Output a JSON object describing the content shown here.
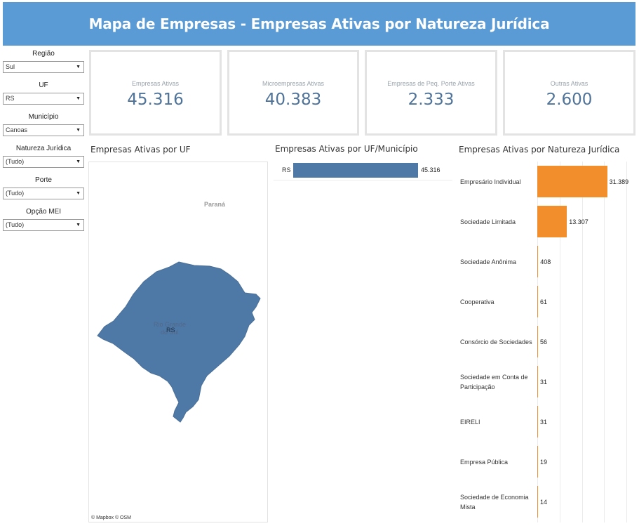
{
  "header": {
    "title": "Mapa de Empresas - Empresas Ativas por Natureza Jurídica"
  },
  "filters": [
    {
      "label": "Região",
      "value": "Sul"
    },
    {
      "label": "UF",
      "value": "RS"
    },
    {
      "label": "Município",
      "value": "Canoas"
    },
    {
      "label": "Natureza Jurídica",
      "value": "(Tudo)"
    },
    {
      "label": "Porte",
      "value": "(Tudo)"
    },
    {
      "label": "Opção MEI",
      "value": "(Tudo)"
    }
  ],
  "kpis": [
    {
      "label": "Empresas Ativas",
      "value": "45.316"
    },
    {
      "label": "Microempresas Ativas",
      "value": "40.383"
    },
    {
      "label": "Empresas de Peq. Porte Ativas",
      "value": "2.333"
    },
    {
      "label": "Outras Ativas",
      "value": "2.600"
    }
  ],
  "map": {
    "title": "Empresas Ativas por UF",
    "neighbor_label": "Paraná",
    "state_label_line1": "Rio Grande",
    "state_label_line2": "do Sul",
    "mark_label": "RS",
    "credits": "© Mapbox  © OSM",
    "fill_color": "#4e79a7"
  },
  "uf_chart": {
    "title": "Empresas Ativas por UF/Município",
    "row_label": "RS",
    "value_label": "45.316",
    "bar_color": "#4e79a7"
  },
  "chart_data": {
    "type": "bar",
    "title": "Empresas Ativas por Natureza Jurídica",
    "orientation": "horizontal",
    "bar_color": "#f28e2b",
    "categories": [
      "Empresário Individual",
      "Sociedade Limitada",
      "Sociedade Anônima",
      "Cooperativa",
      "Consórcio de Sociedades",
      "Sociedade em Conta de Participação",
      "EIRELI",
      "Empresa Pública",
      "Sociedade de Economia Mista"
    ],
    "values": [
      31389,
      13307,
      408,
      61,
      56,
      31,
      31,
      19,
      14
    ],
    "value_labels": [
      "31.389",
      "13.307",
      "408",
      "61",
      "56",
      "31",
      "31",
      "19",
      "14"
    ],
    "xlim": [
      0,
      40000
    ],
    "grid": true
  }
}
